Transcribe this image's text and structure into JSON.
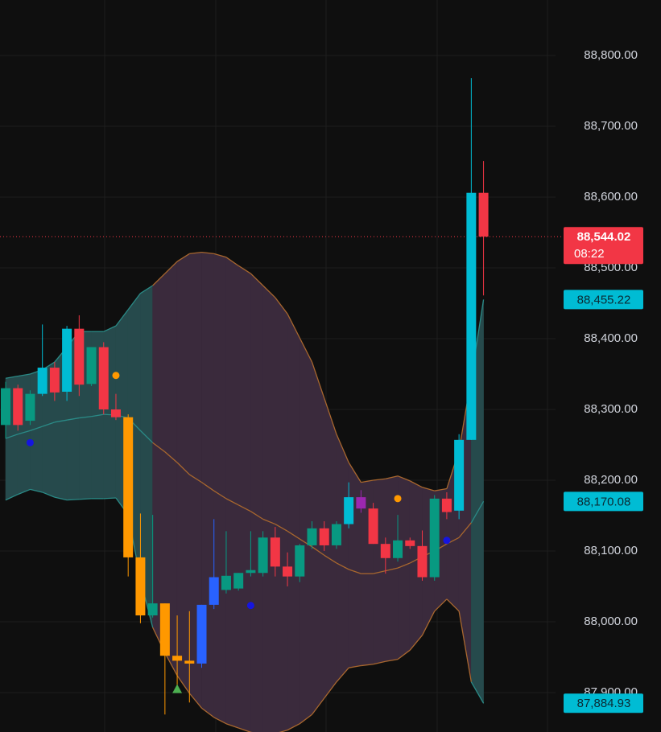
{
  "chart_data": {
    "type": "candlestick",
    "ylim": [
      87844.3,
      88878.4
    ],
    "yticks": [
      {
        "value": 87900,
        "label": "87,900.00"
      },
      {
        "value": 88000,
        "label": "88,000.00"
      },
      {
        "value": 88100,
        "label": "88,100.00"
      },
      {
        "value": 88200,
        "label": "88,200.00"
      },
      {
        "value": 88300,
        "label": "88,300.00"
      },
      {
        "value": 88400,
        "label": "88,400.00"
      },
      {
        "value": 88500,
        "label": "88,500.00"
      },
      {
        "value": 88600,
        "label": "88,600.00"
      },
      {
        "value": 88700,
        "label": "88,700.00"
      },
      {
        "value": 88800,
        "label": "88,800.00"
      }
    ],
    "grid": true,
    "open": [
      88278,
      88330,
      88284,
      88322,
      88359,
      88325,
      88414,
      88336,
      88388,
      88300,
      88289,
      88091,
      88009,
      88026,
      87952,
      87945,
      87941,
      88024,
      88045,
      88047,
      88069,
      88069,
      88119,
      88078,
      88064,
      88108,
      88132,
      88108,
      88138,
      88176,
      88160,
      88110,
      88090,
      88115,
      88107,
      88063,
      88174,
      88157,
      88257,
      88606
    ],
    "high": [
      88339,
      88335,
      88327,
      88420,
      88367,
      88418,
      88433,
      88388,
      88395,
      88322,
      88293,
      88153,
      88151,
      88026,
      88009,
      88015,
      88024,
      88145,
      88128,
      88069,
      88128,
      88128,
      88134,
      88098,
      88110,
      88142,
      88142,
      88142,
      88197,
      88186,
      88168,
      88119,
      88151,
      88119,
      88129,
      88179,
      88183,
      88265,
      88768,
      88651
    ],
    "low": [
      88259,
      88270,
      88278,
      88319,
      88312,
      88312,
      88319,
      88333,
      88293,
      88285,
      88064,
      87998,
      88006,
      87869,
      87907,
      87886,
      87935,
      88018,
      88040,
      88044,
      88064,
      88064,
      88064,
      88050,
      88056,
      88103,
      88100,
      88103,
      88132,
      88154,
      88110,
      88068,
      88085,
      88103,
      88058,
      88058,
      88145,
      88145,
      88257,
      88461
    ],
    "close": [
      88330,
      88278,
      88322,
      88359,
      88324,
      88414,
      88335,
      88388,
      88300,
      88289,
      88091,
      88009,
      88026,
      87952,
      87945,
      87941,
      88024,
      88063,
      88065,
      88069,
      88073,
      88119,
      88078,
      88064,
      88108,
      88132,
      88108,
      88138,
      88176,
      88160,
      88110,
      88090,
      88115,
      88107,
      88063,
      88174,
      88155,
      88257,
      88606,
      88544.02
    ],
    "colors": [
      "#089981",
      "#f23645",
      "#089981",
      "#00bcd4",
      "#f23645",
      "#00bcd4",
      "#f23645",
      "#089981",
      "#f23645",
      "#f23645",
      "#ff9800",
      "#ff9800",
      "#089981",
      "#ff9800",
      "#ff9800",
      "#ff9800",
      "#2962ff",
      "#2962ff",
      "#089981",
      "#089981",
      "#089981",
      "#089981",
      "#f23645",
      "#f23645",
      "#089981",
      "#089981",
      "#f23645",
      "#089981",
      "#00bcd4",
      "#9c27b0",
      "#f23645",
      "#f23645",
      "#089981",
      "#f23645",
      "#f23645",
      "#089981",
      "#f23645",
      "#00bcd4",
      "#00bcd4",
      "#f23645"
    ],
    "bands": [
      {
        "name": "upper",
        "values": [
          88344,
          88347,
          88350,
          88356,
          88367,
          88388,
          88410,
          88410,
          88410,
          88418,
          88441,
          88464,
          88475,
          88492,
          88509,
          88520,
          88522,
          88520,
          88515,
          88503,
          88492,
          88475,
          88458,
          88435,
          88401,
          88367,
          88316,
          88265,
          88225,
          88197,
          88200,
          88202,
          88206,
          88199,
          88190,
          88185,
          88188,
          88242,
          88344,
          88455.22
        ]
      },
      {
        "name": "basis",
        "values": [
          88259,
          88265,
          88270,
          88276,
          88282,
          88285,
          88288,
          88290,
          88293,
          88292,
          88288,
          88270,
          88253,
          88240,
          88225,
          88208,
          88197,
          88185,
          88174,
          88165,
          88156,
          88145,
          88138,
          88128,
          88117,
          88106,
          88094,
          88083,
          88074,
          88068,
          88068,
          88072,
          88076,
          88083,
          88092,
          88100,
          88110,
          88119,
          88140,
          88170.08
        ]
      },
      {
        "name": "lower",
        "values": [
          88172,
          88180,
          88187,
          88183,
          88176,
          88172,
          88173,
          88174,
          88174,
          88175,
          88151,
          88060,
          87992,
          87956,
          87924,
          87899,
          87878,
          87865,
          87856,
          87850,
          87844,
          87841,
          87842,
          87847,
          87856,
          87869,
          87892,
          87915,
          87935,
          87938,
          87940,
          87944,
          87947,
          87960,
          87981,
          88015,
          88032,
          88015,
          87915,
          87884.93
        ]
      }
    ],
    "band_styles": {
      "teal": {
        "line": "#2a8a86",
        "fill": "#264a4c"
      },
      "purple": {
        "line": "#a8672e",
        "fill": "#3a2a3c"
      }
    },
    "band_style": [
      "teal",
      "teal",
      "teal",
      "teal",
      "teal",
      "teal",
      "teal",
      "teal",
      "teal",
      "teal",
      "teal",
      "teal",
      "teal",
      "purple",
      "purple",
      "purple",
      "purple",
      "purple",
      "purple",
      "purple",
      "purple",
      "purple",
      "purple",
      "purple",
      "purple",
      "purple",
      "purple",
      "purple",
      "purple",
      "purple",
      "purple",
      "purple",
      "purple",
      "purple",
      "purple",
      "purple",
      "purple",
      "purple",
      "purple",
      "teal"
    ],
    "markers": [
      {
        "index": 2,
        "value": 88253,
        "shape": "circle",
        "color": "#1515e0"
      },
      {
        "index": 9,
        "value": 88348,
        "shape": "circle",
        "color": "#ff9800"
      },
      {
        "index": 14,
        "value": 87905,
        "shape": "triangle",
        "color": "#4caf50"
      },
      {
        "index": 20,
        "value": 88023,
        "shape": "circle",
        "color": "#1515e0"
      },
      {
        "index": 32,
        "value": 88174,
        "shape": "circle",
        "color": "#ff9800"
      },
      {
        "index": 36,
        "value": 88115,
        "shape": "circle",
        "color": "#1515e0"
      }
    ],
    "last_price": {
      "value": 88544.02,
      "label": "88,544.02",
      "countdown": "08:22",
      "color": "#f23645"
    },
    "last_labels": [
      {
        "value": 88455.22,
        "label": "88,455.22",
        "color": "#00bcd4"
      },
      {
        "value": 88170.08,
        "label": "88,170.08",
        "color": "#00bcd4"
      },
      {
        "value": 87884.93,
        "label": "87,884.93",
        "color": "#00bcd4"
      }
    ]
  }
}
